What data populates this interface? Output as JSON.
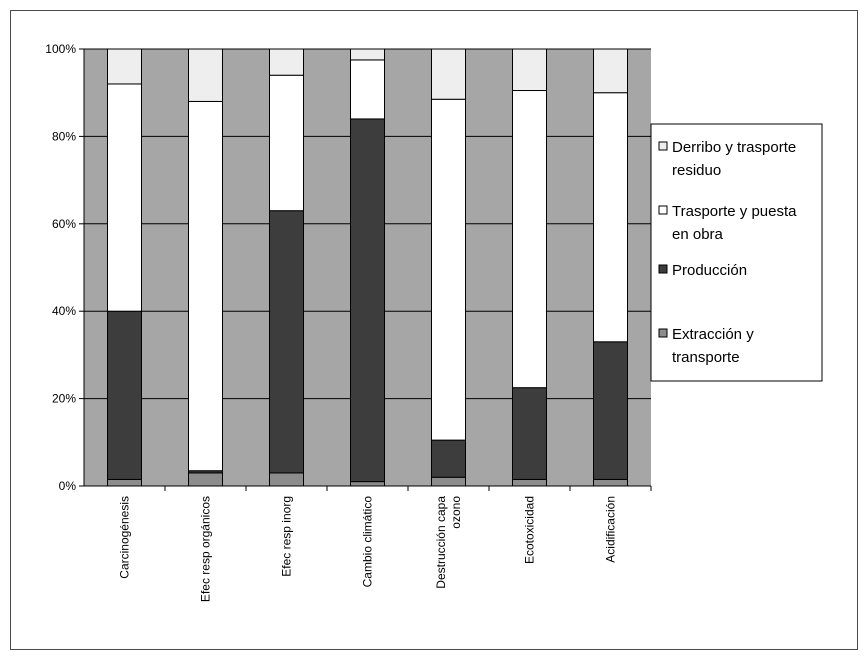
{
  "chart_data": {
    "type": "bar",
    "stacked": true,
    "percent": true,
    "categories": [
      "Carcinogénesis",
      "Efec resp orgánicos",
      "Efec resp inorg",
      "Cambio climático",
      "Destrucción capa ozono",
      "Ecotoxicidad",
      "Acidificación"
    ],
    "category_lines": [
      [
        "Carcinogénesis"
      ],
      [
        "Efec resp orgánicos"
      ],
      [
        "Efec resp inorg"
      ],
      [
        "Cambio climático"
      ],
      [
        "Destrucción capa",
        "ozono"
      ],
      [
        "Ecotoxicidad"
      ],
      [
        "Acidificación"
      ]
    ],
    "series": [
      {
        "name": "Extracción y transporte",
        "legend_lines": [
          "Extracción y",
          "transporte"
        ],
        "color": "#8c8c8c",
        "values": [
          1.5,
          3,
          3,
          1,
          2,
          1.5,
          1.5
        ]
      },
      {
        "name": "Producción",
        "legend_lines": [
          "Producción"
        ],
        "color": "#3d3d3d",
        "values": [
          38.5,
          0.5,
          60,
          83,
          8.5,
          21,
          31.5
        ]
      },
      {
        "name": "Trasporte y puesta en obra",
        "legend_lines": [
          "Trasporte y puesta",
          "en obra"
        ],
        "color": "#ffffff",
        "values": [
          52,
          84.5,
          31,
          13.5,
          78,
          68,
          57
        ]
      },
      {
        "name": "Derribo y trasporte residuo",
        "legend_lines": [
          "Derribo y trasporte",
          "residuo"
        ],
        "color": "#eeeeee",
        "values": [
          8,
          12,
          6,
          2.5,
          11.5,
          9.5,
          10
        ]
      }
    ],
    "legend_order": [
      3,
      2,
      1,
      0
    ],
    "y_ticks": [
      "0%",
      "20%",
      "40%",
      "60%",
      "80%",
      "100%"
    ],
    "ylim": [
      0,
      100
    ],
    "grid": true,
    "plot_background": "#a6a6a6",
    "legend_position": "right",
    "title": "",
    "xlabel": "",
    "ylabel": ""
  }
}
